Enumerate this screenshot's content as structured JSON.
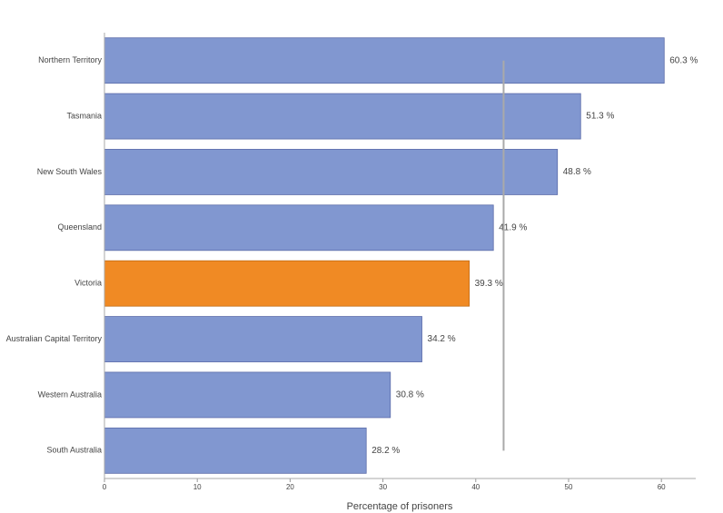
{
  "chart_data": {
    "type": "hbar",
    "x_label": "Percentage of prisoners",
    "categories": [
      "Northern Territory",
      "Tasmania",
      "New South Wales",
      "Queensland",
      "Victoria",
      "Australian Capital Territory",
      "Western Australia",
      "South Australia"
    ],
    "values": [
      60.3,
      51.3,
      48.8,
      41.9,
      39.3,
      34.2,
      30.8,
      28.2
    ],
    "value_labels": [
      "60.3 %",
      "51.3 %",
      "48.8 %",
      "41.9 %",
      "39.3 %",
      "34.2 %",
      "30.8 %",
      "28.2 %"
    ],
    "colors": [
      "#8197d0",
      "#8197d0",
      "#8197d0",
      "#8197d0",
      "#f08a24",
      "#8197d0",
      "#8197d0",
      "#8197d0"
    ],
    "reference_line": 43,
    "xlim": [
      0,
      63.7
    ],
    "xticks": [
      0,
      10,
      20,
      30,
      40,
      50,
      60
    ]
  }
}
